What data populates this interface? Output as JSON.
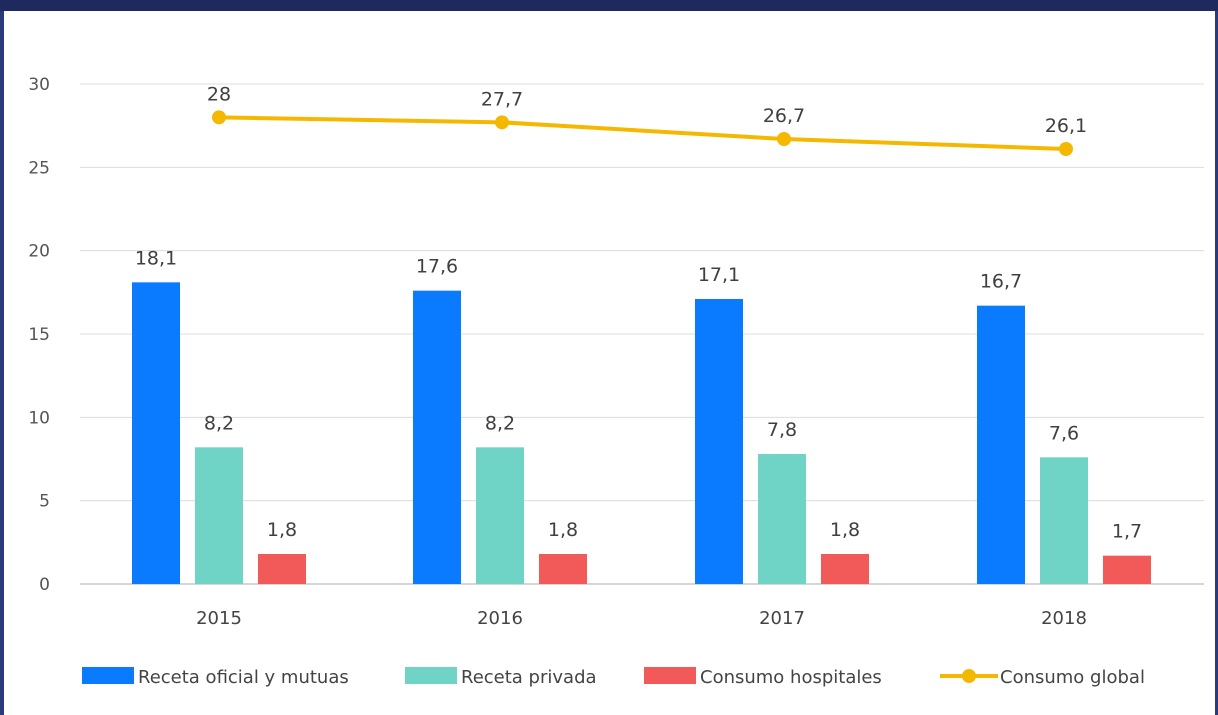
{
  "chart_data": {
    "type": "bar",
    "categories": [
      "2015",
      "2016",
      "2017",
      "2018"
    ],
    "ylim": [
      0,
      30
    ],
    "yticks": [
      0,
      5,
      10,
      15,
      20,
      25,
      30
    ],
    "grid": true,
    "legend_position": "bottom",
    "series": [
      {
        "name": "Receta oficial y mutuas",
        "type": "bar",
        "color": "#0a7bff",
        "values": [
          18.1,
          17.6,
          17.1,
          16.7
        ],
        "labels": [
          "18,1",
          "17,6",
          "17,1",
          "16,7"
        ]
      },
      {
        "name": "Receta privada",
        "type": "bar",
        "color": "#6fd3c6",
        "values": [
          8.2,
          8.2,
          7.8,
          7.6
        ],
        "labels": [
          "8,2",
          "8,2",
          "7,8",
          "7,6"
        ]
      },
      {
        "name": "Consumo hospitales",
        "type": "bar",
        "color": "#f25a5a",
        "values": [
          1.8,
          1.8,
          1.8,
          1.7
        ],
        "labels": [
          "1,8",
          "1,8",
          "1,8",
          "1,7"
        ]
      },
      {
        "name": "Consumo global",
        "type": "line",
        "color": "#f5b800",
        "values": [
          28,
          27.7,
          26.7,
          26.1
        ],
        "labels": [
          "28",
          "27,7",
          "26,7",
          "26,1"
        ]
      }
    ]
  }
}
